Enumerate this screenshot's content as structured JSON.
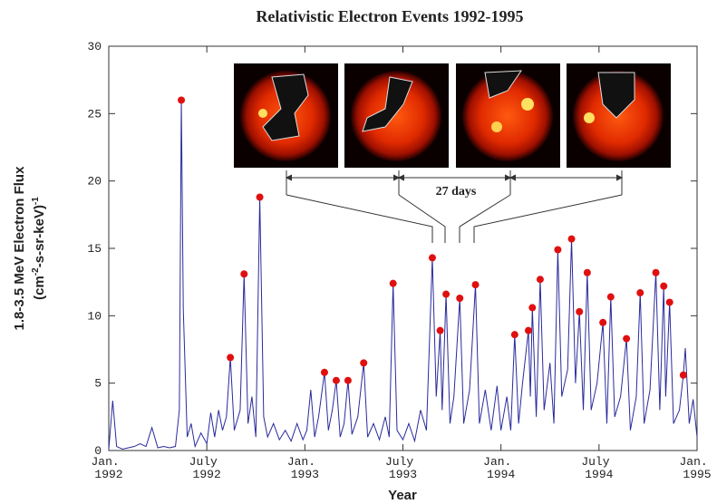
{
  "chart_data": {
    "type": "line",
    "title": "Relativistic Electron Events 1992-1995",
    "x_label": "Year",
    "y_label": {
      "line1": "1.8-3.5 MeV Electron Flux",
      "line2": [
        "(cm",
        "-2",
        "-s-sr-keV)",
        "-1"
      ]
    },
    "annotation": "27 days",
    "xlim": [
      1992,
      1995
    ],
    "xticks": [
      {
        "value": 1992,
        "label": "Jan. 1992"
      },
      {
        "value": 1992.5,
        "label": "July 1992"
      },
      {
        "value": 1993,
        "label": "Jan. 1993"
      },
      {
        "value": 1993.5,
        "label": "July 1993"
      },
      {
        "value": 1994,
        "label": "Jan. 1994"
      },
      {
        "value": 1994.5,
        "label": "July 1994"
      },
      {
        "value": 1995,
        "label": "Jan. 1995"
      }
    ],
    "ylim": [
      0,
      30
    ],
    "yticks": [
      0,
      5,
      10,
      15,
      20,
      25,
      30
    ],
    "series": [
      {
        "color": "#2a2a9c",
        "x": [
          1992.0,
          1992.02,
          1992.04,
          1992.07,
          1992.1,
          1992.13,
          1992.16,
          1992.19,
          1992.22,
          1992.25,
          1992.28,
          1992.31,
          1992.34,
          1992.36,
          1992.37,
          1992.38,
          1992.4,
          1992.42,
          1992.44,
          1992.47,
          1992.5,
          1992.52,
          1992.54,
          1992.56,
          1992.58,
          1992.6,
          1992.62,
          1992.64,
          1992.67,
          1992.69,
          1992.71,
          1992.73,
          1992.75,
          1992.77,
          1992.79,
          1992.81,
          1992.84,
          1992.87,
          1992.9,
          1992.93,
          1992.96,
          1992.99,
          1993.01,
          1993.03,
          1993.05,
          1993.07,
          1993.1,
          1993.12,
          1993.14,
          1993.16,
          1993.18,
          1993.2,
          1993.22,
          1993.24,
          1993.27,
          1993.3,
          1993.32,
          1993.35,
          1993.38,
          1993.41,
          1993.43,
          1993.45,
          1993.47,
          1993.5,
          1993.53,
          1993.56,
          1993.59,
          1993.62,
          1993.65,
          1993.67,
          1993.69,
          1993.7,
          1993.72,
          1993.74,
          1993.76,
          1993.79,
          1993.81,
          1993.84,
          1993.87,
          1993.89,
          1993.92,
          1993.95,
          1993.98,
          1994.0,
          1994.03,
          1994.05,
          1994.07,
          1994.09,
          1994.11,
          1994.14,
          1994.15,
          1994.16,
          1994.18,
          1994.2,
          1994.22,
          1994.25,
          1994.27,
          1994.29,
          1994.31,
          1994.34,
          1994.36,
          1994.38,
          1994.4,
          1994.42,
          1994.44,
          1994.46,
          1994.49,
          1994.52,
          1994.54,
          1994.56,
          1994.58,
          1994.61,
          1994.64,
          1994.66,
          1994.69,
          1994.71,
          1994.73,
          1994.76,
          1994.79,
          1994.81,
          1994.83,
          1994.84,
          1994.86,
          1994.88,
          1994.91,
          1994.93,
          1994.94,
          1994.96,
          1994.98,
          1995.0
        ],
        "values": [
          0.1,
          3.7,
          0.3,
          0.1,
          0.2,
          0.3,
          0.5,
          0.3,
          1.7,
          0.2,
          0.3,
          0.2,
          0.3,
          3.0,
          26.0,
          10.5,
          1.0,
          2.0,
          0.3,
          1.3,
          0.5,
          2.8,
          1.0,
          3.0,
          1.5,
          2.5,
          6.9,
          1.5,
          3.0,
          13.1,
          2.0,
          4.0,
          1.0,
          18.8,
          2.5,
          1.0,
          2.0,
          0.8,
          1.5,
          0.7,
          2.0,
          0.8,
          1.5,
          4.5,
          1.0,
          2.5,
          5.8,
          1.5,
          3.0,
          5.2,
          1.0,
          2.0,
          5.2,
          1.2,
          2.5,
          6.5,
          1.0,
          2.0,
          0.8,
          2.5,
          1.0,
          12.4,
          1.5,
          0.8,
          2.0,
          0.7,
          3.0,
          1.5,
          14.3,
          4.0,
          8.9,
          3.0,
          11.6,
          2.0,
          4.0,
          11.3,
          2.0,
          4.5,
          12.3,
          2.0,
          4.5,
          1.5,
          4.8,
          1.5,
          4.0,
          1.5,
          8.6,
          2.0,
          5.0,
          8.9,
          4.0,
          10.6,
          2.5,
          12.7,
          3.0,
          6.5,
          2.0,
          14.9,
          4.0,
          6.0,
          15.7,
          5.0,
          10.3,
          3.0,
          13.2,
          3.0,
          5.0,
          9.5,
          2.0,
          11.4,
          2.5,
          4.0,
          8.3,
          1.5,
          4.0,
          11.7,
          2.0,
          4.5,
          13.2,
          3.0,
          12.2,
          4.0,
          11.0,
          2.0,
          3.0,
          5.6,
          7.6,
          2.0,
          3.8,
          1.0
        ]
      },
      {
        "color": "#e01010",
        "marker": "dot",
        "x": [
          1992.37,
          1992.62,
          1992.69,
          1992.77,
          1993.1,
          1993.16,
          1993.22,
          1993.3,
          1993.45,
          1993.65,
          1993.69,
          1993.72,
          1993.79,
          1993.87,
          1994.07,
          1994.14,
          1994.16,
          1994.2,
          1994.29,
          1994.36,
          1994.4,
          1994.44,
          1994.52,
          1994.56,
          1994.64,
          1994.71,
          1994.79,
          1994.83,
          1994.86,
          1994.93
        ],
        "values": [
          26.0,
          6.9,
          13.1,
          18.8,
          5.8,
          5.2,
          5.2,
          6.5,
          12.4,
          14.3,
          8.9,
          11.6,
          11.3,
          12.3,
          8.6,
          8.9,
          10.6,
          12.7,
          14.9,
          15.7,
          10.3,
          13.2,
          9.5,
          11.4,
          8.3,
          11.7,
          13.2,
          12.2,
          11.0,
          5.6
        ]
      }
    ]
  }
}
